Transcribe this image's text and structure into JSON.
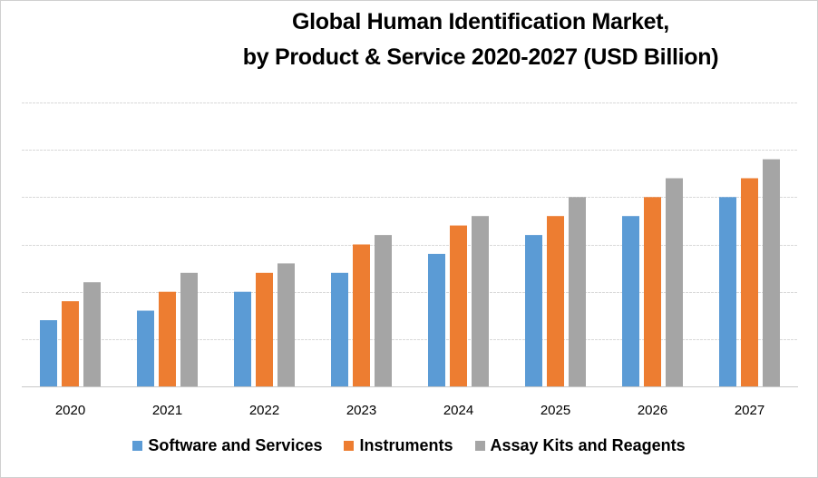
{
  "chart_data": {
    "type": "bar",
    "title": "Global Human Identification Market,",
    "subtitle": "by  Product & Service 2020-2027 (USD Billion)",
    "xlabel": "",
    "ylabel": "",
    "ylim": [
      0,
      6
    ],
    "grid": true,
    "legend_position": "bottom",
    "categories": [
      "2020",
      "2021",
      "2022",
      "2023",
      "2024",
      "2025",
      "2026",
      "2027"
    ],
    "series": [
      {
        "name": "Software and Services",
        "color": "#5b9bd5",
        "values": [
          1.4,
          1.6,
          2.0,
          2.4,
          2.8,
          3.2,
          3.6,
          4.0
        ]
      },
      {
        "name": "Instruments",
        "color": "#ed7d31",
        "values": [
          1.8,
          2.0,
          2.4,
          3.0,
          3.4,
          3.6,
          4.0,
          4.4
        ]
      },
      {
        "name": "Assay Kits and Reagents",
        "color": "#a5a5a5",
        "values": [
          2.2,
          2.4,
          2.6,
          3.2,
          3.6,
          4.0,
          4.4,
          4.8
        ]
      }
    ]
  }
}
